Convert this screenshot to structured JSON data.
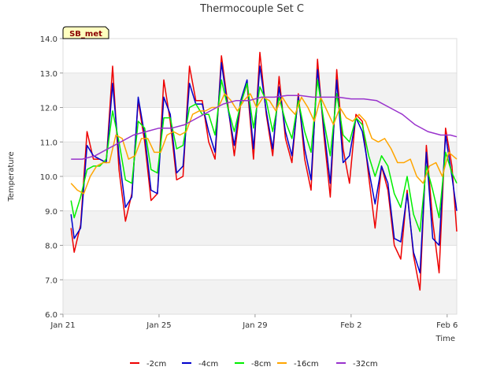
{
  "chart_data": {
    "type": "line",
    "title": "Thermocouple Set C",
    "xlabel": "Time",
    "ylabel": "Temperature",
    "site_label": "SB_met",
    "ylim": [
      6.0,
      14.0
    ],
    "xlim": [
      0,
      12.3
    ],
    "yticks": [
      6.0,
      7.0,
      8.0,
      9.0,
      10.0,
      11.0,
      12.0,
      13.0,
      14.0
    ],
    "ytick_labels": [
      "6.0",
      "7.0",
      "8.0",
      "9.0",
      "10.0",
      "11.0",
      "12.0",
      "13.0",
      "14.0"
    ],
    "xticks": [
      0,
      3,
      6,
      9,
      12
    ],
    "xtick_labels": [
      "Jan 21",
      "Jan 25",
      "Jan 29",
      "Feb 2",
      "Feb 6"
    ],
    "x_unit": "days since Jan 21",
    "grid": true,
    "legend_position": "bottom",
    "series": [
      {
        "name": "-2cm",
        "color": "#ee0000",
        "x": [
          0.25,
          0.35,
          0.55,
          0.75,
          0.95,
          1.15,
          1.35,
          1.55,
          1.75,
          1.95,
          2.15,
          2.35,
          2.55,
          2.75,
          2.95,
          3.15,
          3.35,
          3.55,
          3.75,
          3.95,
          4.15,
          4.35,
          4.55,
          4.75,
          4.95,
          5.15,
          5.35,
          5.55,
          5.75,
          5.95,
          6.15,
          6.35,
          6.55,
          6.75,
          6.95,
          7.15,
          7.35,
          7.55,
          7.75,
          7.95,
          8.15,
          8.35,
          8.55,
          8.75,
          8.95,
          9.15,
          9.35,
          9.55,
          9.75,
          9.95,
          10.15,
          10.35,
          10.55,
          10.75,
          10.95,
          11.15,
          11.35,
          11.55,
          11.75,
          11.95,
          12.15,
          12.3
        ],
        "y": [
          8.5,
          7.8,
          8.6,
          11.3,
          10.5,
          10.5,
          10.4,
          13.2,
          10.2,
          8.7,
          9.5,
          12.2,
          11.0,
          9.3,
          9.5,
          12.8,
          11.6,
          9.9,
          10.0,
          13.2,
          12.2,
          12.2,
          11.0,
          10.5,
          13.5,
          12.1,
          10.6,
          12.1,
          12.7,
          10.5,
          13.6,
          11.8,
          10.6,
          12.9,
          11.1,
          10.4,
          12.4,
          10.5,
          9.6,
          13.4,
          11.2,
          9.4,
          13.1,
          10.8,
          9.8,
          11.8,
          11.6,
          10.0,
          8.5,
          10.3,
          9.6,
          8.0,
          7.6,
          9.6,
          7.7,
          6.7,
          10.9,
          8.7,
          7.2,
          11.4,
          10.3,
          8.4
        ]
      },
      {
        "name": "-4cm",
        "color": "#0000cc",
        "x": [
          0.25,
          0.35,
          0.55,
          0.75,
          0.95,
          1.15,
          1.35,
          1.55,
          1.75,
          1.95,
          2.15,
          2.35,
          2.55,
          2.75,
          2.95,
          3.15,
          3.35,
          3.55,
          3.75,
          3.95,
          4.15,
          4.35,
          4.55,
          4.75,
          4.95,
          5.15,
          5.35,
          5.55,
          5.75,
          5.95,
          6.15,
          6.35,
          6.55,
          6.75,
          6.95,
          7.15,
          7.35,
          7.55,
          7.75,
          7.95,
          8.15,
          8.35,
          8.55,
          8.75,
          8.95,
          9.15,
          9.35,
          9.55,
          9.75,
          9.95,
          10.15,
          10.35,
          10.55,
          10.75,
          10.95,
          11.15,
          11.35,
          11.55,
          11.75,
          11.95,
          12.15,
          12.3
        ],
        "y": [
          8.9,
          8.2,
          8.5,
          10.9,
          10.6,
          10.5,
          10.4,
          12.7,
          10.6,
          9.1,
          9.4,
          12.3,
          11.2,
          9.6,
          9.5,
          12.3,
          11.8,
          10.1,
          10.3,
          12.7,
          12.1,
          12.1,
          11.3,
          10.7,
          13.3,
          12.0,
          10.9,
          12.2,
          12.8,
          10.8,
          13.2,
          11.9,
          10.8,
          12.6,
          11.3,
          10.6,
          12.3,
          10.8,
          9.9,
          13.1,
          11.4,
          9.8,
          12.8,
          10.4,
          10.6,
          11.7,
          11.3,
          10.2,
          9.2,
          10.3,
          9.8,
          8.2,
          8.1,
          9.5,
          7.8,
          7.2,
          10.7,
          8.2,
          8.0,
          11.2,
          10.0,
          9.0
        ]
      },
      {
        "name": "-8cm",
        "color": "#00ee00",
        "x": [
          0.25,
          0.35,
          0.55,
          0.75,
          0.95,
          1.15,
          1.35,
          1.55,
          1.75,
          1.95,
          2.15,
          2.35,
          2.55,
          2.75,
          2.95,
          3.15,
          3.35,
          3.55,
          3.75,
          3.95,
          4.15,
          4.35,
          4.55,
          4.75,
          4.95,
          5.15,
          5.35,
          5.55,
          5.75,
          5.95,
          6.15,
          6.35,
          6.55,
          6.75,
          6.95,
          7.15,
          7.35,
          7.55,
          7.75,
          7.95,
          8.15,
          8.35,
          8.55,
          8.75,
          8.95,
          9.15,
          9.35,
          9.55,
          9.75,
          9.95,
          10.15,
          10.35,
          10.55,
          10.75,
          10.95,
          11.15,
          11.35,
          11.55,
          11.75,
          11.95,
          12.15,
          12.3
        ],
        "y": [
          9.3,
          8.8,
          9.4,
          10.2,
          10.3,
          10.3,
          10.5,
          11.9,
          11.0,
          9.9,
          9.8,
          11.6,
          11.4,
          10.2,
          10.1,
          11.7,
          11.7,
          10.8,
          10.9,
          12.0,
          12.1,
          11.8,
          11.8,
          11.2,
          12.8,
          12.0,
          11.3,
          12.1,
          12.7,
          11.4,
          12.6,
          12.2,
          11.3,
          12.3,
          11.6,
          11.1,
          12.2,
          11.3,
          10.7,
          12.8,
          11.6,
          10.6,
          12.4,
          11.2,
          11.0,
          11.7,
          11.5,
          10.6,
          10.0,
          10.6,
          10.3,
          9.5,
          9.1,
          10.0,
          8.9,
          8.4,
          10.3,
          9.6,
          8.8,
          10.7,
          10.1,
          9.8
        ]
      },
      {
        "name": "-16cm",
        "color": "#ffa500",
        "x": [
          0.25,
          0.45,
          0.65,
          0.85,
          1.05,
          1.25,
          1.45,
          1.65,
          1.85,
          2.05,
          2.25,
          2.45,
          2.65,
          2.85,
          3.05,
          3.25,
          3.45,
          3.65,
          3.85,
          4.05,
          4.25,
          4.45,
          4.65,
          4.85,
          5.05,
          5.25,
          5.45,
          5.65,
          5.85,
          6.05,
          6.25,
          6.45,
          6.65,
          6.85,
          7.05,
          7.25,
          7.45,
          7.65,
          7.85,
          8.05,
          8.25,
          8.45,
          8.65,
          8.85,
          9.05,
          9.25,
          9.45,
          9.65,
          9.85,
          10.05,
          10.25,
          10.45,
          10.65,
          10.85,
          11.05,
          11.25,
          11.45,
          11.65,
          11.85,
          12.05,
          12.3
        ],
        "y": [
          9.8,
          9.6,
          9.5,
          10.0,
          10.3,
          10.4,
          10.4,
          11.2,
          11.1,
          10.5,
          10.6,
          11.1,
          11.1,
          10.7,
          10.7,
          11.2,
          11.3,
          11.2,
          11.3,
          11.8,
          11.9,
          11.9,
          12.0,
          12.0,
          12.4,
          12.2,
          11.9,
          12.2,
          12.4,
          12.0,
          12.3,
          12.2,
          11.9,
          12.3,
          12.0,
          11.8,
          12.3,
          12.0,
          11.6,
          12.3,
          11.9,
          11.5,
          12.0,
          11.7,
          11.6,
          11.8,
          11.6,
          11.1,
          11.0,
          11.1,
          10.8,
          10.4,
          10.4,
          10.5,
          10.0,
          9.8,
          10.3,
          10.4,
          10.0,
          10.7,
          10.5
        ]
      },
      {
        "name": "-32cm",
        "color": "#9932cc",
        "x": [
          0.25,
          0.6,
          1.0,
          1.4,
          1.8,
          2.2,
          2.6,
          3.0,
          3.4,
          3.8,
          4.2,
          4.6,
          5.0,
          5.4,
          5.8,
          6.2,
          6.6,
          7.0,
          7.4,
          7.8,
          8.2,
          8.6,
          9.0,
          9.4,
          9.8,
          10.2,
          10.6,
          11.0,
          11.4,
          11.8,
          12.1,
          12.3
        ],
        "y": [
          10.5,
          10.5,
          10.6,
          10.8,
          11.0,
          11.2,
          11.3,
          11.4,
          11.4,
          11.5,
          11.7,
          11.9,
          12.1,
          12.2,
          12.2,
          12.3,
          12.3,
          12.35,
          12.35,
          12.3,
          12.3,
          12.3,
          12.25,
          12.25,
          12.2,
          12.0,
          11.8,
          11.5,
          11.3,
          11.2,
          11.2,
          11.15
        ]
      }
    ]
  }
}
